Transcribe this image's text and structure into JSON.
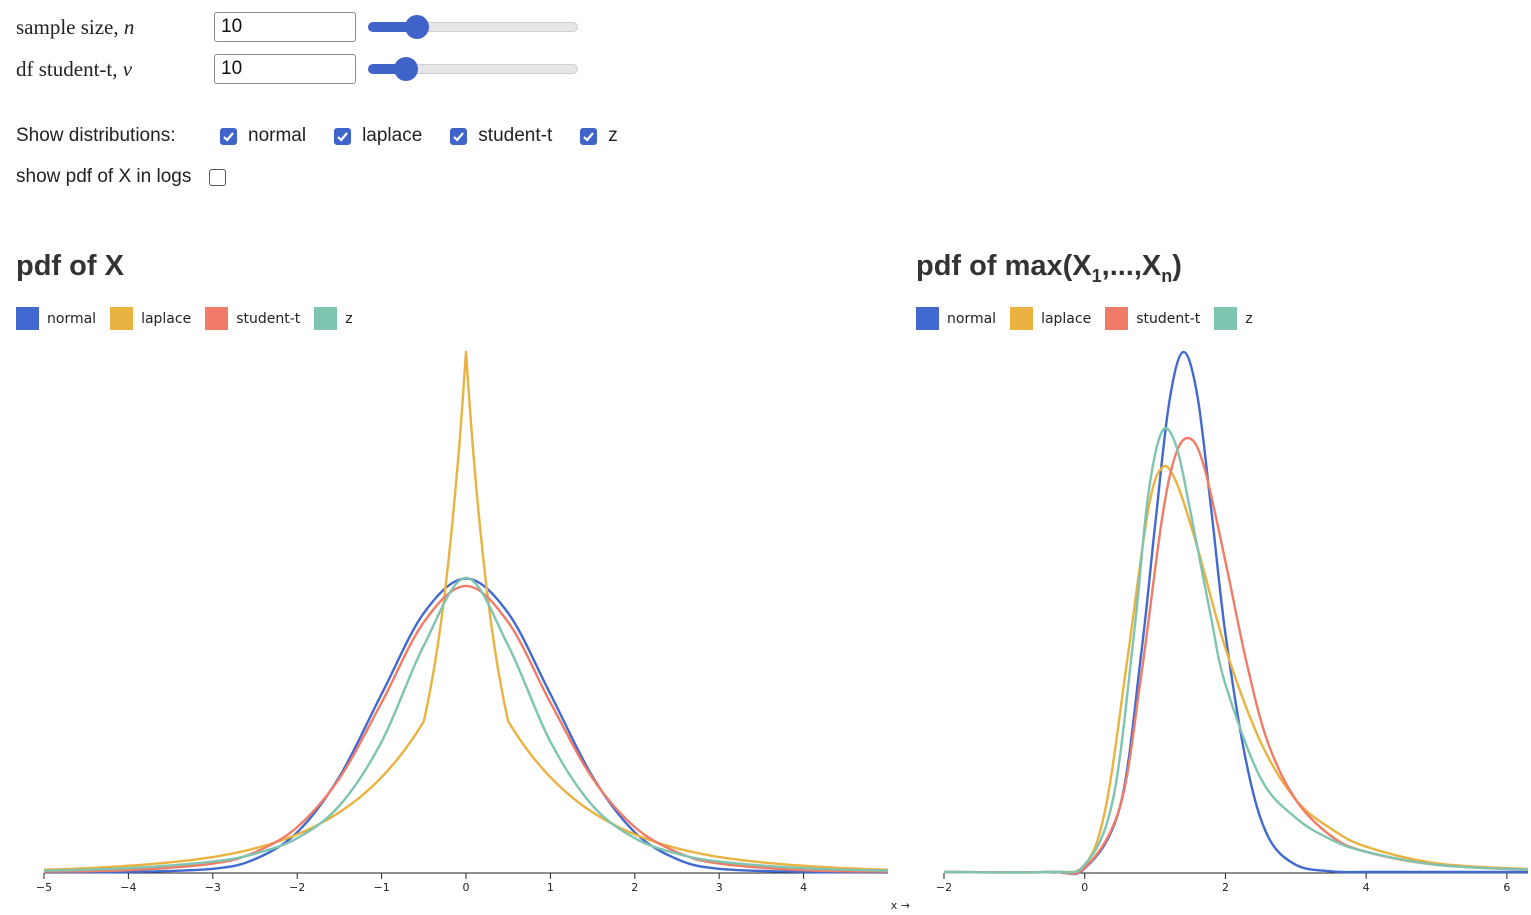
{
  "controls": {
    "sample_size": {
      "label_text": "sample size, ",
      "label_var": "n",
      "value": "10",
      "slider_fraction": 0.2
    },
    "df": {
      "label_text": "df student-t, ",
      "label_var": "ν",
      "value": "10",
      "slider_fraction": 0.14
    },
    "show_distributions": {
      "label": "Show distributions:",
      "options": [
        {
          "label": "normal",
          "checked": true
        },
        {
          "label": "laplace",
          "checked": true
        },
        {
          "label": "student-t",
          "checked": true
        },
        {
          "label": "z",
          "checked": true
        }
      ]
    },
    "log_toggle": {
      "label": "show pdf of X in logs",
      "checked": false
    }
  },
  "colors": {
    "normal": "#4169cf",
    "laplace": "#eab240",
    "student_t": "#f07c68",
    "z": "#7ec4b0"
  },
  "left_chart": {
    "title": "pdf of X",
    "legend": [
      "normal",
      "laplace",
      "student-t",
      "z"
    ],
    "x_axis_label": "x →"
  },
  "right_chart": {
    "title_main": "pdf of max(X",
    "title_sub1": "1",
    "title_mid": ",...,X",
    "title_subn": "n",
    "title_end": ")",
    "legend": [
      "normal",
      "laplace",
      "student-t",
      "z"
    ]
  },
  "chart_data": [
    {
      "type": "line",
      "title": "pdf of X",
      "xlabel": "x →",
      "xlim": [
        -5,
        5
      ],
      "x_ticks": [
        -5,
        -4,
        -3,
        -2,
        -1,
        0,
        1,
        2,
        3,
        4
      ],
      "series": [
        {
          "name": "normal",
          "color": "#4169cf",
          "x": [
            -5,
            -4,
            -3,
            -2.5,
            -2,
            -1.5,
            -1,
            -0.5,
            0,
            0.5,
            1,
            1.5,
            2,
            2.5,
            3,
            4,
            5
          ],
          "y": [
            0.0,
            0.0001,
            0.0044,
            0.0175,
            0.054,
            0.1295,
            0.242,
            0.352,
            0.399,
            0.352,
            0.242,
            0.1295,
            0.054,
            0.0175,
            0.0044,
            0.0001,
            0.0
          ]
        },
        {
          "name": "laplace",
          "color": "#eab240",
          "x": [
            -5,
            -4,
            -3,
            -2.5,
            -2,
            -1.5,
            -1,
            -0.5,
            0,
            0.5,
            1,
            1.5,
            2,
            2.5,
            3,
            4,
            5
          ],
          "y": [
            0.0031,
            0.0085,
            0.0203,
            0.0322,
            0.0512,
            0.0812,
            0.1289,
            0.2049,
            0.7071,
            0.2049,
            0.1289,
            0.0812,
            0.0512,
            0.0322,
            0.0203,
            0.0085,
            0.0031
          ]
        },
        {
          "name": "student-t",
          "color": "#f07c68",
          "x": [
            -5,
            -4,
            -3,
            -2.5,
            -2,
            -1.5,
            -1,
            -0.5,
            0,
            0.5,
            1,
            1.5,
            2,
            2.5,
            3,
            4,
            5
          ],
          "y": [
            0.0005,
            0.0025,
            0.0114,
            0.0269,
            0.0611,
            0.1274,
            0.2304,
            0.3397,
            0.3891,
            0.3397,
            0.2304,
            0.1274,
            0.0611,
            0.0269,
            0.0114,
            0.0025,
            0.0005
          ]
        },
        {
          "name": "z",
          "color": "#7ec4b0",
          "x": [
            -5,
            -4,
            -3,
            -2.5,
            -2,
            -1.5,
            -1,
            -0.5,
            0,
            0.5,
            1,
            1.5,
            2,
            2.5,
            3,
            4,
            5
          ],
          "y": [
            0.0019,
            0.0051,
            0.0142,
            0.0249,
            0.0459,
            0.0902,
            0.1772,
            0.3079,
            0.4,
            0.3079,
            0.1772,
            0.0902,
            0.0459,
            0.0249,
            0.0142,
            0.0051,
            0.0019
          ]
        }
      ]
    },
    {
      "type": "line",
      "title": "pdf of max(X1,...,Xn)",
      "xlim": [
        -2,
        6.3
      ],
      "x_ticks": [
        -2,
        0,
        2,
        4,
        6
      ],
      "series": [
        {
          "name": "normal",
          "color": "#4169cf",
          "x": [
            -2,
            -0.5,
            0,
            0.5,
            0.8,
            1,
            1.2,
            1.4,
            1.6,
            1.8,
            2,
            2.3,
            2.6,
            3,
            3.5,
            4,
            5,
            6.3
          ],
          "y": [
            0,
            0,
            0.005,
            0.09,
            0.3,
            0.48,
            0.65,
            0.72,
            0.66,
            0.5,
            0.33,
            0.15,
            0.05,
            0.01,
            0.001,
            0,
            0,
            0
          ]
        },
        {
          "name": "laplace",
          "color": "#eab240",
          "x": [
            -2,
            -0.5,
            0,
            0.3,
            0.6,
            0.9,
            1.1,
            1.3,
            1.6,
            2,
            2.5,
            3,
            3.5,
            4,
            5,
            6.3
          ],
          "y": [
            0,
            0,
            0.01,
            0.09,
            0.29,
            0.5,
            0.56,
            0.54,
            0.45,
            0.31,
            0.18,
            0.1,
            0.06,
            0.035,
            0.012,
            0.004
          ]
        },
        {
          "name": "student-t",
          "color": "#f07c68",
          "x": [
            -2,
            -0.5,
            0,
            0.5,
            0.8,
            1.1,
            1.3,
            1.5,
            1.7,
            2,
            2.3,
            2.6,
            3,
            3.5,
            4,
            5,
            6.3
          ],
          "y": [
            0,
            0,
            0.006,
            0.09,
            0.27,
            0.49,
            0.58,
            0.6,
            0.56,
            0.43,
            0.29,
            0.18,
            0.1,
            0.05,
            0.028,
            0.01,
            0.003
          ]
        },
        {
          "name": "z",
          "color": "#7ec4b0",
          "x": [
            -2,
            -0.5,
            0,
            0.4,
            0.7,
            0.9,
            1.1,
            1.3,
            1.5,
            1.8,
            2,
            2.5,
            3,
            3.5,
            4,
            5,
            6.3
          ],
          "y": [
            0,
            0,
            0.01,
            0.1,
            0.33,
            0.52,
            0.61,
            0.59,
            0.5,
            0.35,
            0.26,
            0.13,
            0.075,
            0.045,
            0.028,
            0.01,
            0.003
          ]
        }
      ]
    }
  ]
}
